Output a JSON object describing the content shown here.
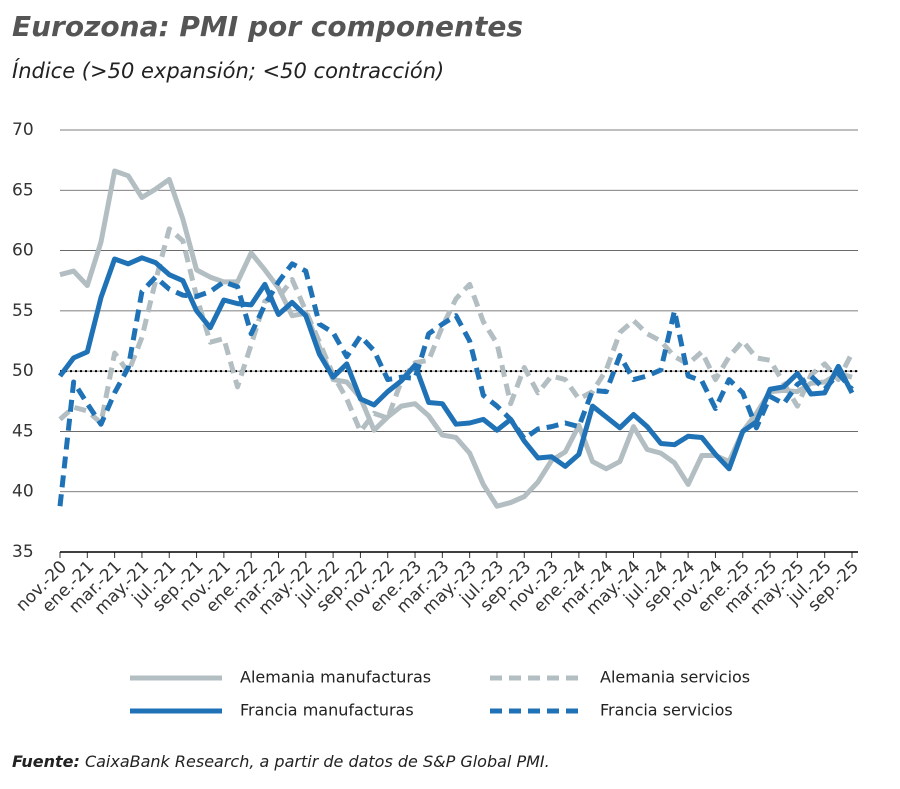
{
  "chart_data": {
    "type": "line",
    "title": "Eurozona: PMI por componentes",
    "subtitle": "Índice (>50 expansión; <50 contracción)",
    "categories": [
      "nov.-20",
      null,
      "ene.-21",
      null,
      "mar.-21",
      null,
      "may.-21",
      null,
      "jul.-21",
      null,
      "sep.-21",
      null,
      "nov.-21",
      null,
      "ene.-22",
      null,
      "mar.-22",
      null,
      "may.-22",
      null,
      "jul.-22",
      null,
      "sep.-22",
      null,
      "nov.-22",
      null,
      "ene.-23",
      null,
      "mar.-23",
      null,
      "may.-23",
      null,
      "jul.-23",
      null,
      "sep.-23",
      null,
      "nov.-23",
      null,
      "ene.-24",
      null,
      "mar.-24",
      null,
      "may.-24",
      null,
      "jul.-24",
      null,
      "sep.-24",
      null,
      "nov.-24",
      null,
      "ene.-25",
      null,
      "mar.-25",
      null,
      "may.-25",
      null,
      "jul.-25",
      null,
      "sep.-25"
    ],
    "series": [
      {
        "name": "Alemania manufacturas",
        "color": "#b3bec2",
        "line_style": "solid",
        "values": [
          58.0,
          58.3,
          57.1,
          60.7,
          66.6,
          66.2,
          64.4,
          65.1,
          65.9,
          62.6,
          58.4,
          57.8,
          57.4,
          57.4,
          59.8,
          58.4,
          56.9,
          54.6,
          54.8,
          52.0,
          49.3,
          49.1,
          47.8,
          45.1,
          46.2,
          47.1,
          47.3,
          46.3,
          44.7,
          44.5,
          43.2,
          40.6,
          38.8,
          39.1,
          39.6,
          40.8,
          42.6,
          43.3,
          45.5,
          42.5,
          41.9,
          42.5,
          45.4,
          43.5,
          43.2,
          42.4,
          40.6,
          43.0,
          43.0,
          42.5,
          45.0,
          46.5,
          48.3,
          48.4,
          48.3,
          49.0,
          49.1,
          49.8,
          49.5
        ]
      },
      {
        "name": "Alemania servicios",
        "color": "#b3bec2",
        "line_style": "dashed",
        "values": [
          46.0,
          47.0,
          46.7,
          45.7,
          51.5,
          49.9,
          52.8,
          57.5,
          61.8,
          60.8,
          56.2,
          52.4,
          52.7,
          48.7,
          52.2,
          55.8,
          56.1,
          57.6,
          55.0,
          52.4,
          49.7,
          47.7,
          45.0,
          46.5,
          46.1,
          49.2,
          50.7,
          50.9,
          53.7,
          56.0,
          57.2,
          54.1,
          52.3,
          47.3,
          50.3,
          48.2,
          49.6,
          49.3,
          47.7,
          48.3,
          50.1,
          53.2,
          54.2,
          53.1,
          52.5,
          51.2,
          50.6,
          51.6,
          49.3,
          51.2,
          52.5,
          51.1,
          50.9,
          49.0,
          47.1,
          49.7,
          50.6,
          49.3,
          51.5
        ]
      },
      {
        "name": "Francia manufacturas",
        "color": "#1f72b5",
        "line_style": "solid",
        "values": [
          49.6,
          51.1,
          51.6,
          56.1,
          59.3,
          58.9,
          59.4,
          59.0,
          58.0,
          57.5,
          55.0,
          53.6,
          55.9,
          55.6,
          55.5,
          57.2,
          54.7,
          55.7,
          54.6,
          51.4,
          49.5,
          50.6,
          47.7,
          47.2,
          48.3,
          49.2,
          50.5,
          47.4,
          47.3,
          45.6,
          45.7,
          46.0,
          45.1,
          46.0,
          44.2,
          42.8,
          42.9,
          42.1,
          43.1,
          47.1,
          46.2,
          45.3,
          46.4,
          45.4,
          44.0,
          43.9,
          44.6,
          44.5,
          43.1,
          41.9,
          45.0,
          45.8,
          48.5,
          48.7,
          49.8,
          48.1,
          48.2,
          50.4,
          48.2
        ]
      },
      {
        "name": "Francia servicios",
        "color": "#1f72b5",
        "line_style": "dashed",
        "values": [
          38.8,
          49.1,
          47.3,
          45.6,
          48.2,
          50.3,
          56.6,
          57.8,
          56.8,
          56.3,
          56.2,
          56.6,
          57.4,
          57.0,
          53.1,
          55.5,
          57.4,
          58.9,
          58.3,
          53.9,
          53.2,
          51.2,
          52.9,
          51.7,
          49.3,
          49.5,
          49.4,
          53.1,
          53.9,
          54.6,
          52.5,
          48.0,
          47.1,
          46.0,
          44.4,
          45.2,
          45.4,
          45.7,
          45.4,
          48.4,
          48.3,
          51.3,
          49.3,
          49.6,
          50.1,
          55.0,
          49.6,
          49.2,
          46.9,
          49.3,
          48.2,
          45.3,
          47.9,
          47.3,
          48.9,
          49.6,
          48.5,
          49.8,
          48.5
        ]
      }
    ],
    "ylim": [
      35,
      70
    ],
    "yticks": [
      35,
      40,
      45,
      50,
      55,
      60,
      65,
      70
    ],
    "grid": true,
    "reference_line": 50,
    "source_label": "Fuente:",
    "source": "CaixaBank Research, a partir de datos de S&P Global PMI."
  }
}
